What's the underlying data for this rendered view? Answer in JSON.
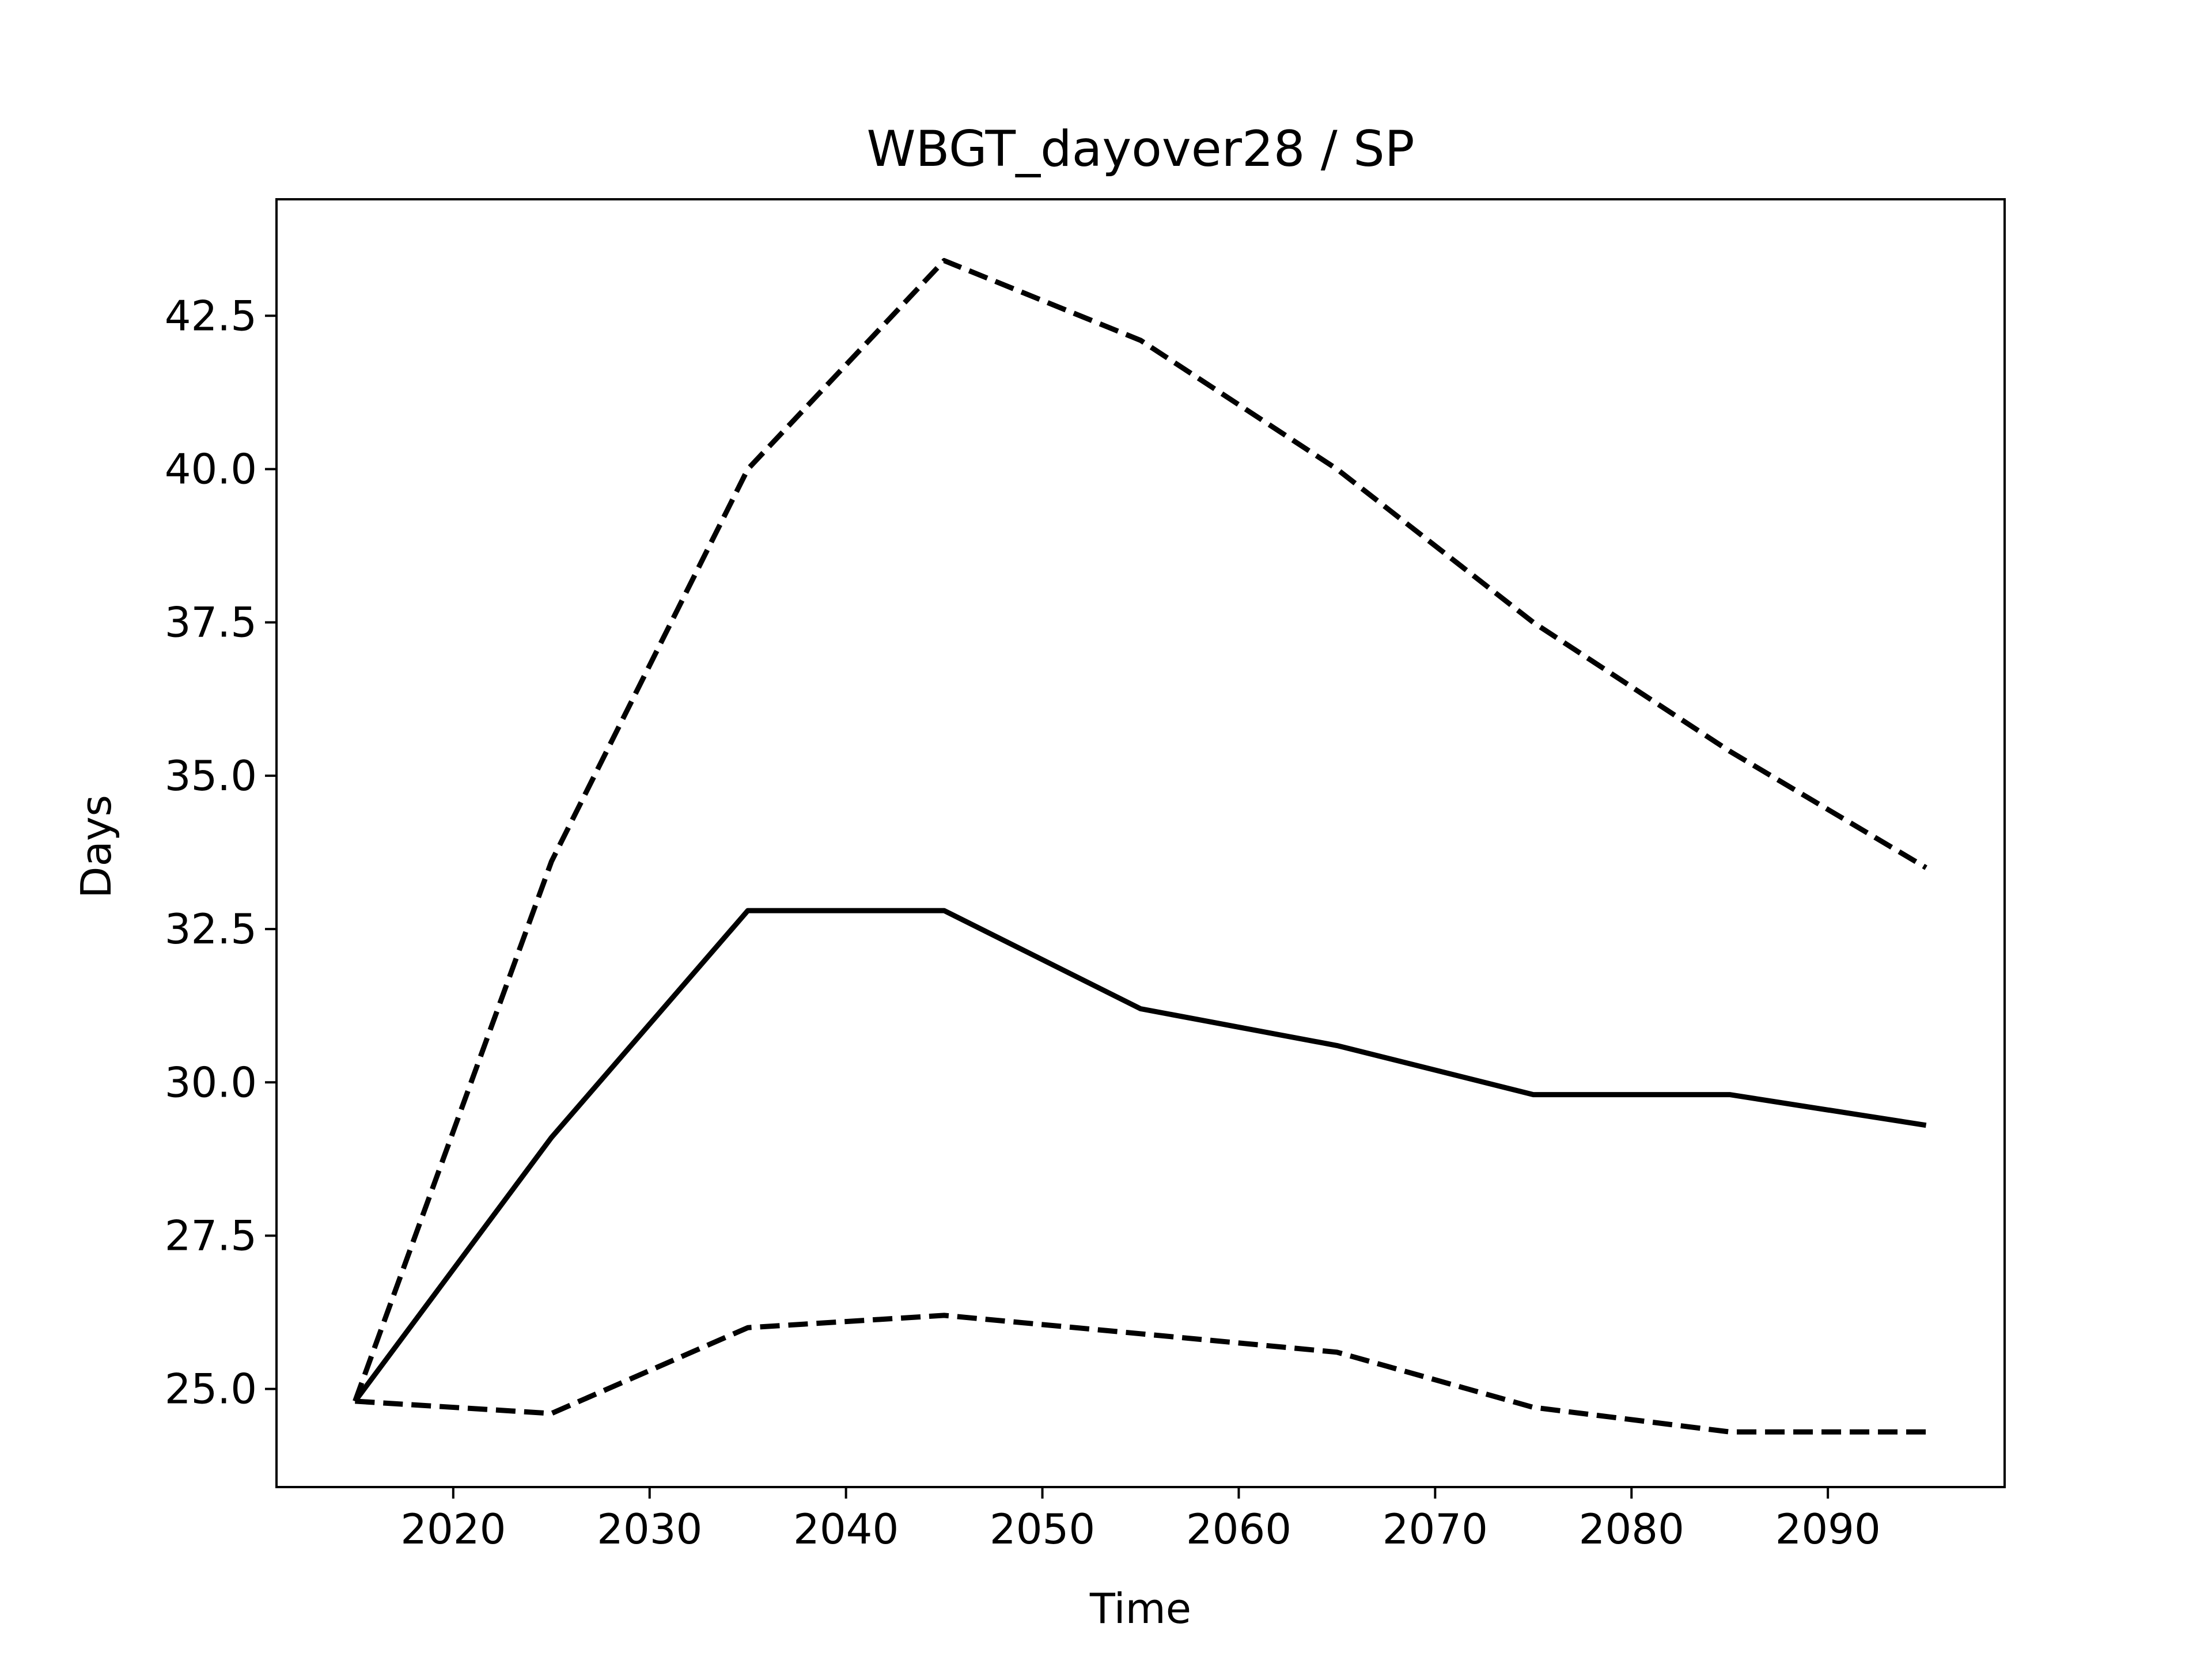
{
  "chart_data": {
    "type": "line",
    "title": "WBGT_dayover28 / SP",
    "xlabel": "Time",
    "ylabel": "Days",
    "x": [
      2015,
      2025,
      2035,
      2045,
      2055,
      2065,
      2075,
      2085,
      2095
    ],
    "xlim": [
      2011,
      2099
    ],
    "ylim": [
      23.4,
      44.4
    ],
    "xticks": [
      2020,
      2030,
      2040,
      2050,
      2060,
      2070,
      2080,
      2090
    ],
    "yticks": [
      25.0,
      27.5,
      30.0,
      32.5,
      35.0,
      37.5,
      40.0,
      42.5
    ],
    "xtick_labels": [
      "2020",
      "2030",
      "2040",
      "2050",
      "2060",
      "2070",
      "2080",
      "2090"
    ],
    "ytick_labels": [
      "25.0",
      "27.5",
      "30.0",
      "32.5",
      "35.0",
      "37.5",
      "40.0",
      "42.5"
    ],
    "grid": false,
    "legend": "none",
    "series": [
      {
        "style": "solid",
        "color": "#000000",
        "values": [
          24.8,
          29.1,
          32.8,
          32.8,
          31.2,
          30.6,
          29.8,
          29.8,
          29.3
        ]
      },
      {
        "style": "dashed",
        "color": "#000000",
        "values": [
          24.8,
          33.6,
          40.0,
          43.4,
          42.1,
          40.0,
          37.5,
          35.4,
          33.5
        ]
      },
      {
        "style": "dashed",
        "color": "#000000",
        "values": [
          24.8,
          24.6,
          26.0,
          26.2,
          25.9,
          25.6,
          24.7,
          24.3,
          24.3
        ]
      }
    ]
  }
}
